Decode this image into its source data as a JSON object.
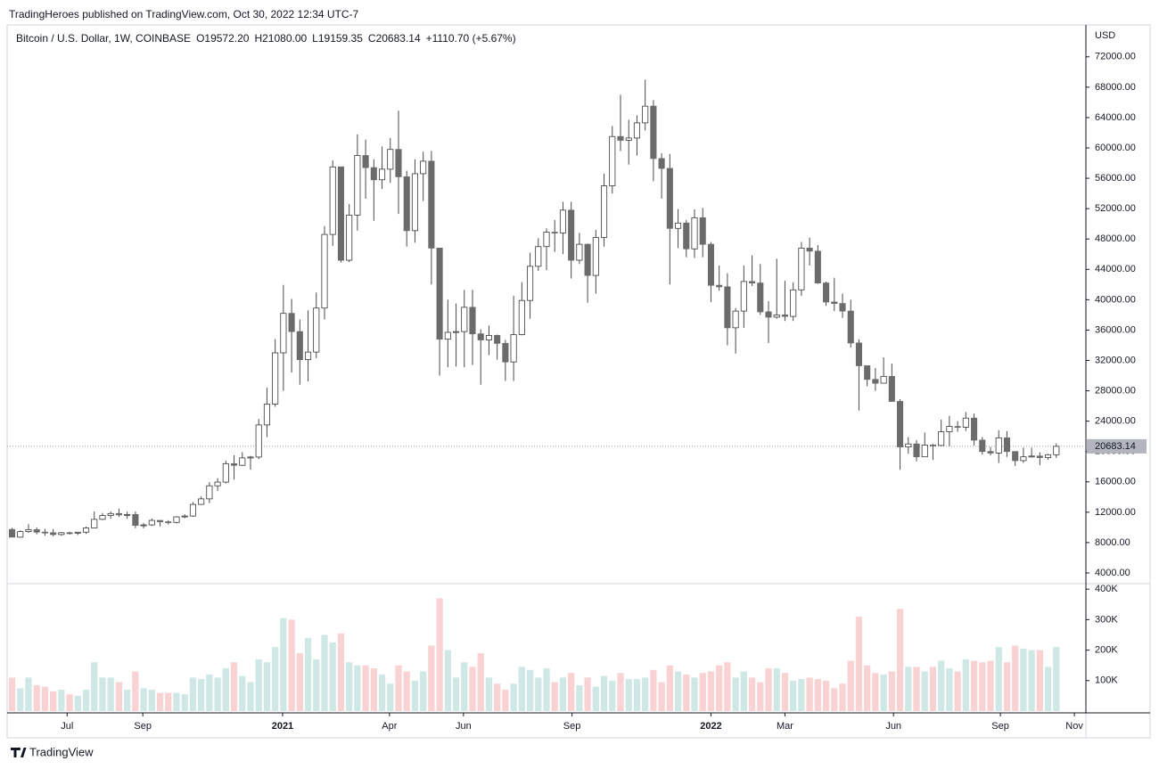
{
  "header": "TradingHeroes published on TradingView.com, Oct 30, 2022 12:34 UTC-7",
  "footer": "TradingView",
  "chart_data": {
    "type": "candlestick",
    "legend": {
      "symbol": "Bitcoin / U.S. Dollar, 1W, COINBASE",
      "ohlc": [
        "O19572.20",
        "H21080.00",
        "L19159.35",
        "C20683.14"
      ],
      "change": "+1110.70 (+5.67%)"
    },
    "currency": "USD",
    "last_price": {
      "value": 20683.14,
      "label": "20683.14"
    },
    "up_color": "#ffffff",
    "down_color": "#6b6b6b",
    "wick_color": "#4a4a4a",
    "volume_up_color": "#cfe8e5",
    "volume_down_color": "#f9d3d3",
    "xlim": [
      -0.6,
      130.6
    ],
    "xticks": [
      {
        "value": 6.7,
        "label": "Jul"
      },
      {
        "value": 15.9,
        "label": "Sep"
      },
      {
        "value": 32.9,
        "label": "2021"
      },
      {
        "value": 45.9,
        "label": "Apr"
      },
      {
        "value": 54.9,
        "label": "Jun"
      },
      {
        "value": 68.1,
        "label": "Sep"
      },
      {
        "value": 85.0,
        "label": "2022"
      },
      {
        "value": 94.0,
        "label": "Mar"
      },
      {
        "value": 107.2,
        "label": "Jun"
      },
      {
        "value": 120.2,
        "label": "Sep"
      },
      {
        "value": 129.2,
        "label": "Nov"
      }
    ],
    "ylim": [
      2590,
      76200
    ],
    "yticks": [
      {
        "value": 4000,
        "label": "4000.00"
      },
      {
        "value": 8000,
        "label": "8000.00"
      },
      {
        "value": 12000,
        "label": "12000.00"
      },
      {
        "value": 16000,
        "label": "16000.00"
      },
      {
        "value": 20000,
        "label": "20000.00"
      },
      {
        "value": 24000,
        "label": "24000.00"
      },
      {
        "value": 28000,
        "label": "28000.00"
      },
      {
        "value": 32000,
        "label": "32000.00"
      },
      {
        "value": 36000,
        "label": "36000.00"
      },
      {
        "value": 40000,
        "label": "40000.00"
      },
      {
        "value": 44000,
        "label": "44000.00"
      },
      {
        "value": 48000,
        "label": "48000.00"
      },
      {
        "value": 52000,
        "label": "52000.00"
      },
      {
        "value": 56000,
        "label": "56000.00"
      },
      {
        "value": 60000,
        "label": "60000.00"
      },
      {
        "value": 64000,
        "label": "64000.00"
      },
      {
        "value": 68000,
        "label": "68000.00"
      },
      {
        "value": 72000,
        "label": "72000.00"
      }
    ],
    "volume_ylim": [
      0,
      418000
    ],
    "volume_ticks": [
      {
        "value": 100000,
        "label": "100K"
      },
      {
        "value": 200000,
        "label": "200K"
      },
      {
        "value": 300000,
        "label": "300K"
      },
      {
        "value": 400000,
        "label": "400K"
      }
    ],
    "open": [
      9730,
      8720,
      9450,
      9700,
      9380,
      9300,
      9060,
      9300,
      9250,
      9370,
      9930,
      11060,
      11570,
      11830,
      11650,
      11700,
      10270,
      10330,
      10920,
      10740,
      10660,
      11390,
      11500,
      13030,
      13760,
      15480,
      15970,
      18400,
      18180,
      19160,
      19270,
      23500,
      26250,
      33000,
      38200,
      35800,
      32100,
      33100,
      38900,
      48600,
      57500,
      45200,
      51150,
      59000,
      57400,
      55800,
      57200,
      59800,
      56200,
      49100,
      56600,
      58250,
      46800,
      34800,
      35700,
      35800,
      39000,
      35500,
      34700,
      35300,
      34250,
      31800,
      35400,
      39900,
      44400,
      47000,
      48900,
      48800,
      51800,
      45200,
      47300,
      43200,
      48200,
      55000,
      61500,
      61000,
      61300,
      63300,
      65500,
      58600,
      57300,
      49400,
      50100,
      46700,
      50800,
      47300,
      41900,
      41700,
      36300,
      38500,
      42400,
      42200,
      38400,
      37700,
      38000,
      37800,
      41300,
      46800,
      46400,
      42200,
      39700,
      39500,
      38500,
      34300,
      31300,
      29500,
      29000,
      29900,
      26600,
      20600,
      21000,
      19300,
      20850,
      20800,
      22600,
      23300,
      23200,
      24400,
      21500,
      20000,
      19800,
      21800,
      20000,
      18800,
      19300,
      19400,
      19200,
      19572.2
    ],
    "high": [
      9950,
      9600,
      10430,
      10000,
      9800,
      9790,
      9380,
      9440,
      9390,
      10100,
      12100,
      11900,
      12100,
      12470,
      12070,
      12090,
      10600,
      11180,
      10950,
      10950,
      11480,
      11720,
      13350,
      14100,
      15960,
      16490,
      18800,
      19500,
      19920,
      19420,
      24300,
      28400,
      34800,
      41950,
      40100,
      37400,
      38600,
      40950,
      49700,
      58350,
      57500,
      52600,
      61780,
      61100,
      58500,
      60200,
      61300,
      64900,
      57000,
      58500,
      59500,
      59600,
      46800,
      40000,
      39500,
      41300,
      41300,
      36100,
      36600,
      35400,
      34700,
      40500,
      42300,
      46200,
      48100,
      49400,
      50500,
      52900,
      52900,
      48800,
      47400,
      49200,
      56600,
      62900,
      67000,
      63700,
      64300,
      69000,
      66300,
      59300,
      59200,
      51950,
      50500,
      51900,
      52100,
      47600,
      44500,
      43500,
      38900,
      44500,
      45850,
      44700,
      39800,
      45400,
      42500,
      42300,
      47600,
      48200,
      47200,
      42400,
      42900,
      40800,
      40000,
      34800,
      31300,
      31000,
      32400,
      31600,
      26900,
      21900,
      21500,
      22500,
      21000,
      24200,
      24700,
      24000,
      25200,
      25000,
      21900,
      20600,
      22800,
      22700,
      20000,
      20500,
      20500,
      19900,
      19700,
      21080.0
    ],
    "low": [
      8700,
      8630,
      9250,
      9100,
      8900,
      8830,
      8900,
      9050,
      9000,
      9150,
      9900,
      10960,
      11150,
      11370,
      11150,
      9900,
      9880,
      10200,
      10140,
      10380,
      10530,
      11220,
      11400,
      12950,
      13200,
      14800,
      15800,
      16300,
      18100,
      17600,
      19000,
      21900,
      25900,
      28000,
      30400,
      28800,
      29250,
      32300,
      37400,
      47100,
      44900,
      44950,
      49100,
      53300,
      50400,
      54600,
      55400,
      51300,
      47000,
      47500,
      53000,
      42000,
      30000,
      31100,
      31200,
      31100,
      31400,
      28800,
      32700,
      32100,
      29300,
      29300,
      35300,
      37500,
      43800,
      43900,
      46300,
      46000,
      42800,
      44700,
      39600,
      40800,
      47000,
      54000,
      59600,
      57800,
      59000,
      62300,
      55600,
      53300,
      42000,
      46800,
      45600,
      45500,
      45600,
      39700,
      41200,
      34000,
      32900,
      36300,
      41800,
      38000,
      34300,
      37500,
      37200,
      37200,
      40500,
      44500,
      42100,
      39200,
      38500,
      37600,
      33700,
      25400,
      28600,
      28000,
      29000,
      26600,
      17600,
      19700,
      18700,
      19300,
      18900,
      20700,
      20700,
      22600,
      22700,
      20800,
      19600,
      19500,
      18500,
      19300,
      18100,
      18500,
      19200,
      18200,
      18900,
      19159.35
    ],
    "close": [
      8720,
      9450,
      9700,
      9380,
      9300,
      9060,
      9300,
      9250,
      9370,
      9930,
      11060,
      11570,
      11830,
      11650,
      11700,
      10270,
      10330,
      10920,
      10740,
      10660,
      11390,
      11500,
      13030,
      13760,
      15480,
      15970,
      18400,
      18180,
      19160,
      19270,
      23500,
      26250,
      33000,
      38200,
      35800,
      32100,
      33100,
      38900,
      48600,
      57500,
      45200,
      51150,
      59000,
      57400,
      55800,
      57200,
      59800,
      56200,
      49100,
      56600,
      58250,
      46800,
      34800,
      35700,
      35800,
      39000,
      35500,
      34700,
      35300,
      34250,
      31800,
      35400,
      39900,
      44400,
      47000,
      48900,
      48800,
      51800,
      45200,
      47300,
      43200,
      48200,
      55000,
      61500,
      61000,
      61300,
      63300,
      65500,
      58600,
      57300,
      49400,
      50100,
      46700,
      50800,
      47300,
      41900,
      41700,
      36300,
      38500,
      42400,
      42200,
      38400,
      37700,
      38000,
      37800,
      41300,
      46800,
      46400,
      42200,
      39700,
      39500,
      38500,
      34300,
      31300,
      29500,
      29000,
      29900,
      26600,
      20600,
      21000,
      19300,
      20850,
      20800,
      22600,
      23300,
      23200,
      24400,
      21500,
      20000,
      19800,
      21800,
      20000,
      18800,
      19300,
      19400,
      19200,
      19572.2,
      20683.14
    ],
    "volume": [
      110000,
      75000,
      110000,
      85000,
      80000,
      65000,
      70000,
      55000,
      50000,
      70000,
      160000,
      110000,
      110000,
      95000,
      70000,
      130000,
      75000,
      70000,
      60000,
      60000,
      60000,
      55000,
      110000,
      105000,
      120000,
      110000,
      140000,
      160000,
      115000,
      95000,
      170000,
      160000,
      210000,
      305000,
      300000,
      190000,
      240000,
      170000,
      250000,
      225000,
      255000,
      160000,
      150000,
      150000,
      140000,
      120000,
      90000,
      150000,
      130000,
      100000,
      130000,
      215000,
      370000,
      200000,
      110000,
      160000,
      145000,
      190000,
      110000,
      90000,
      70000,
      90000,
      145000,
      135000,
      110000,
      140000,
      95000,
      110000,
      125000,
      85000,
      110000,
      80000,
      115000,
      100000,
      125000,
      105000,
      105000,
      110000,
      135000,
      95000,
      150000,
      130000,
      120000,
      110000,
      125000,
      130000,
      150000,
      160000,
      110000,
      130000,
      110000,
      95000,
      140000,
      140000,
      125000,
      100000,
      105000,
      110000,
      105000,
      100000,
      75000,
      90000,
      165000,
      310000,
      150000,
      125000,
      120000,
      130000,
      335000,
      145000,
      145000,
      130000,
      145000,
      165000,
      140000,
      130000,
      170000,
      165000,
      160000,
      165000,
      210000,
      160000,
      215000,
      205000,
      200000,
      200000,
      145000,
      210000
    ]
  }
}
